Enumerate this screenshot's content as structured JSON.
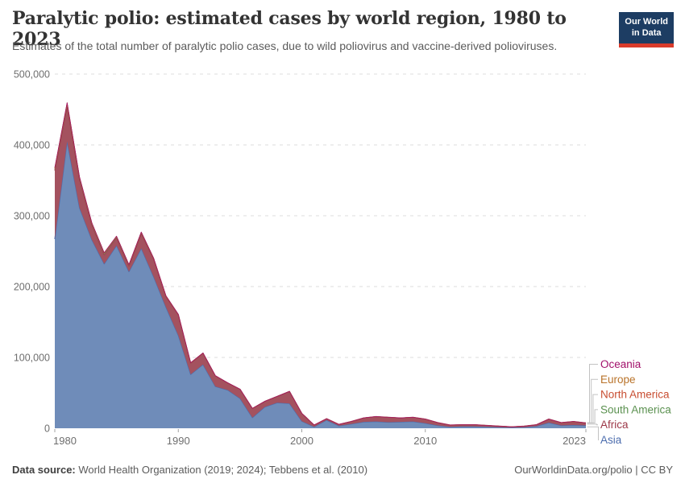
{
  "header": {
    "title": "Paralytic polio: estimated cases by world region, 1980 to 2023",
    "subtitle": "Estimates of the total number of paralytic polio cases, due to wild poliovirus and vaccine-derived polioviruses."
  },
  "logo": {
    "line1": "Our World",
    "line2": "in Data",
    "bg_color": "#1d3d63",
    "accent_color": "#d93b2b"
  },
  "footer": {
    "datasource_label": "Data source:",
    "datasource_text": " World Health Organization (2019; 2024); Tebbens et al. (2010)",
    "credit": "OurWorldinData.org/polio | CC BY"
  },
  "style": {
    "grid_color": "#dcdcdc",
    "tick_color": "#a0a0a0",
    "axis_text_color": "#6e6e6e",
    "leader_line_color": "#c2c2c2"
  },
  "chart_data": {
    "type": "area",
    "stacked": true,
    "title": "Paralytic polio: estimated cases by world region, 1980 to 2023",
    "xlabel": "",
    "ylabel": "",
    "ylim": [
      0,
      500000
    ],
    "grid": "horizontal-dashed",
    "legend_position": "right-of-chart-with-leader-lines",
    "x_ticks": [
      1980,
      1990,
      2000,
      2010,
      2023
    ],
    "y_ticks": [
      0,
      100000,
      200000,
      300000,
      400000,
      500000
    ],
    "y_tick_labels": [
      "0",
      "100,000",
      "200,000",
      "300,000",
      "400,000",
      "500,000"
    ],
    "x": [
      1980,
      1981,
      1982,
      1983,
      1984,
      1985,
      1986,
      1987,
      1988,
      1989,
      1990,
      1991,
      1992,
      1993,
      1994,
      1995,
      1996,
      1997,
      1998,
      1999,
      2000,
      2001,
      2002,
      2003,
      2004,
      2005,
      2006,
      2007,
      2008,
      2009,
      2010,
      2011,
      2012,
      2013,
      2014,
      2015,
      2016,
      2017,
      2018,
      2019,
      2020,
      2021,
      2022,
      2023
    ],
    "series": [
      {
        "name": "Asia",
        "color": "#4C6DAE",
        "fill": "#6F8CB9",
        "values": [
          267000,
          405000,
          311000,
          266000,
          232000,
          258000,
          221000,
          254000,
          214000,
          171000,
          131000,
          76000,
          90000,
          59000,
          54000,
          42000,
          15000,
          30000,
          36000,
          35000,
          10000,
          2000,
          11500,
          3500,
          6000,
          9000,
          9500,
          8500,
          9000,
          9500,
          7000,
          4000,
          2000,
          2500,
          2500,
          2000,
          1500,
          1000,
          1500,
          3000,
          8000,
          4000,
          4500,
          4000
        ]
      },
      {
        "name": "Africa",
        "color": "#9C3848",
        "fill": "#A4525F",
        "values": [
          97000,
          50000,
          40000,
          21000,
          13000,
          11000,
          8000,
          21000,
          25000,
          15000,
          29000,
          16000,
          16000,
          15000,
          10000,
          13000,
          13000,
          8000,
          9000,
          17000,
          11000,
          2500,
          2000,
          2000,
          3500,
          5500,
          7000,
          7000,
          5500,
          6000,
          6000,
          4000,
          2500,
          2500,
          2500,
          2000,
          1500,
          1000,
          1500,
          2000,
          5000,
          4000,
          5000,
          3500
        ]
      },
      {
        "name": "South America",
        "color": "#5B9150",
        "fill": "#6F9B61",
        "values": [
          2500,
          3000,
          2500,
          2000,
          2000,
          1500,
          1500,
          1500,
          1000,
          800,
          500,
          300,
          200,
          100,
          0,
          0,
          0,
          0,
          0,
          0,
          0,
          0,
          0,
          0,
          0,
          0,
          0,
          0,
          0,
          0,
          0,
          0,
          0,
          0,
          0,
          0,
          0,
          0,
          0,
          0,
          0,
          0,
          0,
          0
        ]
      },
      {
        "name": "North America",
        "color": "#C84E32",
        "fill": "#D3745A",
        "values": [
          100,
          100,
          80,
          60,
          50,
          40,
          30,
          20,
          10,
          10,
          5,
          5,
          0,
          0,
          0,
          0,
          0,
          0,
          0,
          0,
          0,
          0,
          0,
          0,
          0,
          0,
          0,
          0,
          0,
          0,
          0,
          0,
          0,
          0,
          0,
          0,
          0,
          0,
          0,
          0,
          0,
          0,
          0,
          0
        ]
      },
      {
        "name": "Europe",
        "color": "#B9732A",
        "fill": "#C99356",
        "values": [
          1200,
          1400,
          1000,
          800,
          700,
          600,
          500,
          400,
          300,
          300,
          300,
          200,
          200,
          200,
          100,
          100,
          100,
          0,
          0,
          0,
          0,
          0,
          0,
          0,
          0,
          0,
          0,
          0,
          0,
          0,
          0,
          0,
          0,
          0,
          0,
          0,
          0,
          0,
          0,
          0,
          0,
          0,
          0,
          0
        ]
      },
      {
        "name": "Oceania",
        "color": "#A2116B",
        "fill": "#B25A93",
        "values": [
          50,
          50,
          40,
          30,
          20,
          20,
          10,
          10,
          10,
          5,
          5,
          0,
          0,
          0,
          0,
          0,
          0,
          0,
          0,
          0,
          0,
          0,
          0,
          0,
          0,
          0,
          0,
          0,
          0,
          0,
          0,
          0,
          0,
          0,
          0,
          0,
          0,
          0,
          0,
          0,
          0,
          0,
          0,
          0
        ]
      }
    ]
  }
}
